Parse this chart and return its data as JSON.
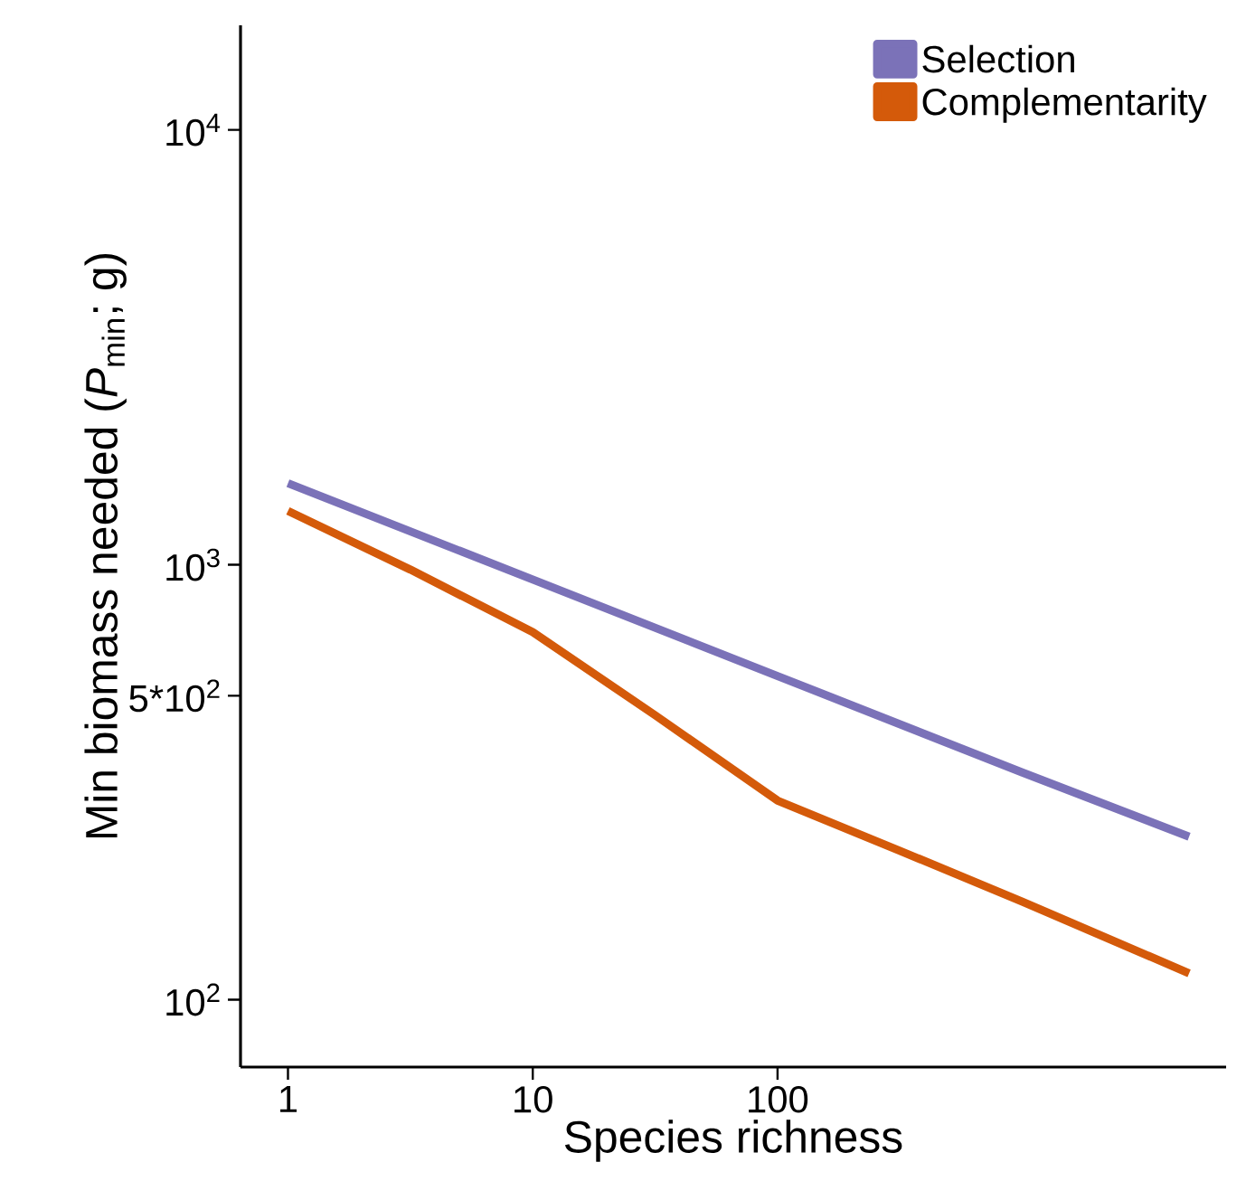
{
  "chart_data": {
    "type": "line",
    "xlabel": "Species richness",
    "ylabel": "Min biomass needed (*P*$_{min}$; g)",
    "log": "xy",
    "xlim": [
      0.64,
      6800
    ],
    "ylim": [
      70,
      17400
    ],
    "xticks": [
      1,
      10,
      100
    ],
    "yticks": [
      {
        "value": 100,
        "label": "10$^{2}$"
      },
      {
        "value": 500,
        "label": "5*10$^{2}$"
      },
      {
        "value": 1000,
        "label": "10$^{3}$"
      },
      {
        "value": 10000,
        "label": "10$^{4}$"
      }
    ],
    "legend": "top right",
    "grid": false,
    "marker": "none",
    "line_style": "solid",
    "series": [
      {
        "name": "Selection",
        "color": "#7b72b8",
        "x": [
          1,
          10,
          100,
          1000,
          4800
        ],
        "values": [
          1540,
          925,
          555,
          333,
          237
        ]
      },
      {
        "name": "Complementarity",
        "color": "#d45a0a",
        "x": [
          1,
          3.16,
          10,
          31.6,
          100,
          316,
          1000,
          4800
        ],
        "values": [
          1330,
          975,
          700,
          451,
          287,
          220,
          168,
          115
        ]
      }
    ]
  }
}
